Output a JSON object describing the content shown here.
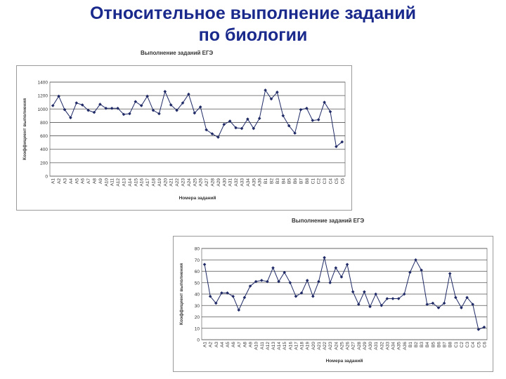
{
  "slide": {
    "title_line1": "Относительное выполнение заданий",
    "title_line2": "по биологии"
  },
  "colors": {
    "title": "#1a2a8c",
    "series": "#1f2a66",
    "grid": "#555555"
  },
  "chart_data": [
    {
      "type": "line",
      "title": "Выполнение заданий ЕГЭ",
      "xlabel": "Номера заданий",
      "ylabel": "Коэффициент выполнения",
      "ylim": [
        0,
        1400
      ],
      "yticks": [
        0,
        200,
        400,
        600,
        800,
        1000,
        1200,
        1400
      ],
      "grid": true,
      "legend": "none",
      "categories": [
        "A1",
        "A2",
        "A3",
        "A4",
        "A5",
        "A6",
        "A7",
        "A8",
        "A9",
        "A10",
        "A11",
        "A12",
        "A13",
        "A14",
        "A15",
        "A16",
        "A17",
        "A18",
        "A19",
        "A20",
        "A21",
        "A22",
        "A23",
        "A24",
        "A25",
        "A26",
        "A27",
        "A28",
        "A29",
        "A30",
        "A31",
        "A32",
        "A33",
        "A34",
        "A35",
        "A36",
        "B1",
        "B2",
        "B3",
        "B4",
        "B5",
        "B6",
        "B7",
        "B8",
        "C1",
        "C2",
        "C3",
        "C4",
        "C5",
        "C6"
      ],
      "values": [
        1050,
        1190,
        990,
        870,
        1090,
        1060,
        980,
        950,
        1070,
        1010,
        1010,
        1010,
        920,
        930,
        1110,
        1050,
        1190,
        980,
        930,
        1260,
        1060,
        980,
        1090,
        1220,
        940,
        1030,
        690,
        630,
        580,
        770,
        820,
        720,
        710,
        850,
        710,
        860,
        1280,
        1150,
        1250,
        900,
        750,
        640,
        990,
        1010,
        830,
        840,
        1100,
        960,
        440,
        510
      ]
    },
    {
      "type": "line",
      "title": "Выполнение заданий ЕГЭ",
      "xlabel": "Номера заданий",
      "ylabel": "Коэффициент выполнения",
      "ylim": [
        0,
        80
      ],
      "yticks": [
        0,
        10,
        20,
        30,
        40,
        50,
        60,
        70,
        80
      ],
      "grid": true,
      "legend": "none",
      "categories": [
        "A1",
        "A2",
        "A3",
        "A4",
        "A5",
        "A6",
        "A7",
        "A8",
        "A9",
        "A10",
        "A11",
        "A12",
        "A13",
        "A14",
        "A15",
        "A16",
        "A17",
        "A18",
        "A19",
        "A20",
        "A21",
        "A22",
        "A23",
        "A24",
        "A25",
        "A26",
        "A27",
        "A28",
        "A29",
        "A30",
        "A31",
        "A32",
        "A33",
        "A34",
        "A35",
        "A36",
        "B1",
        "B2",
        "B3",
        "B4",
        "B5",
        "B6",
        "B7",
        "B8",
        "C1",
        "C2",
        "C3",
        "C4",
        "C5",
        "C6"
      ],
      "values": [
        66,
        38,
        32,
        41,
        41,
        38,
        26,
        37,
        47,
        51,
        52,
        51,
        63,
        51,
        59,
        50,
        38,
        41,
        52,
        38,
        51,
        72,
        50,
        63,
        55,
        66,
        42,
        31,
        42,
        29,
        40,
        30,
        36,
        36,
        36,
        40,
        59,
        70,
        61,
        31,
        32,
        28,
        32,
        58,
        37,
        28,
        37,
        31,
        9,
        11
      ]
    }
  ]
}
